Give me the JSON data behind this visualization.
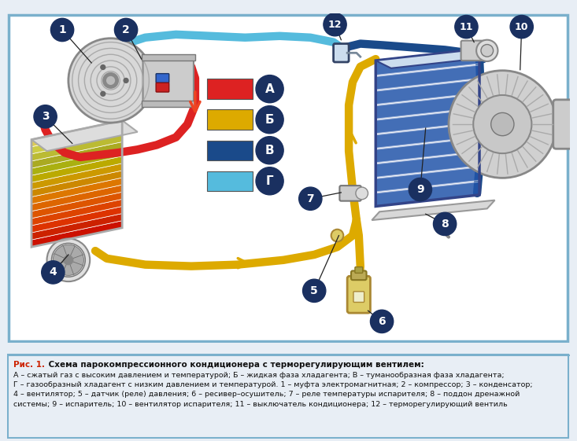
{
  "bg_color": "#e8eef5",
  "diagram_bg": "#ffffff",
  "caption_bg": "#e8eef5",
  "border_color": "#7ab0cc",
  "colors": {
    "A": "#dd2222",
    "B": "#ddaa00",
    "V": "#1a4a8a",
    "G": "#55bbdd"
  },
  "legend_labels": [
    "А",
    "Б",
    "В",
    "Г"
  ],
  "legend_colors": [
    "#dd2222",
    "#ddaa00",
    "#1a4a8a",
    "#55bbdd"
  ],
  "number_bg": "#1a3060",
  "number_fg": "#ffffff",
  "caption_red": "#cc2200",
  "caption_body": "А – сжатый газ с высоким давлением и температурой; Б – жидкая фаза хладагента; В – туманообразная фаза хладагента; Г – газообразный хладагент с низким давлением и температурой. 1 – муфта электромагнитная; 2 – компрессор; 3 – конденсатор; 4 – вентилятор; 5 – датчик (реле) давления; 6 – ресивер–осушитель; 7 – реле температуры испарителя; 8 – поддон дренажной системы; 9 – испаритель; 10 – вентилятор испарителя; 11 – выключатель кондиционера; 12 – терморегулирующий вентиль"
}
